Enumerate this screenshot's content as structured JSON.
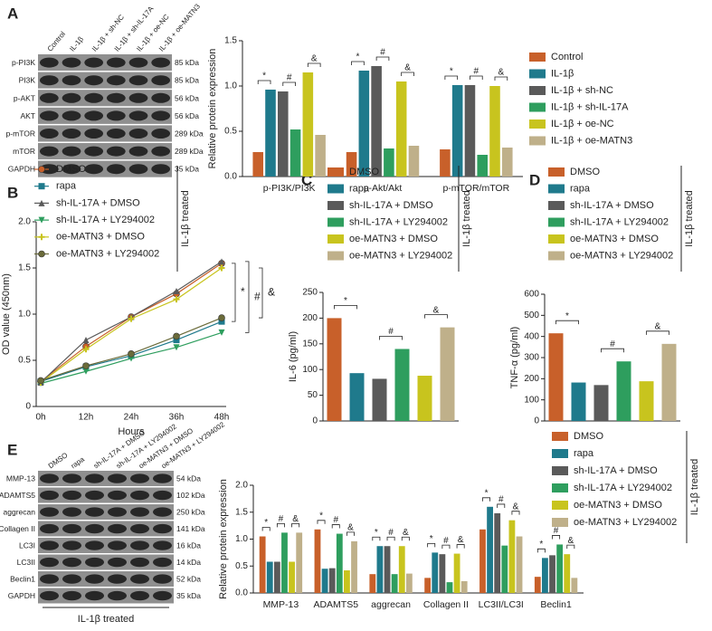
{
  "panel_labels": [
    "A",
    "B",
    "C",
    "D",
    "E"
  ],
  "blots": [
    {
      "columns": [
        "Control",
        "IL-1β",
        "IL-1β + sh-NC",
        "IL-1β + sh-IL-17A",
        "IL-1β + oe-NC",
        "IL-1β + oe-MATN3"
      ],
      "rows": [
        {
          "protein": "p-PI3K",
          "size": "85 kDa"
        },
        {
          "protein": "PI3K",
          "size": "85 kDa"
        },
        {
          "protein": "p-AKT",
          "size": "56 kDa"
        },
        {
          "protein": "AKT",
          "size": "56 kDa"
        },
        {
          "protein": "p-mTOR",
          "size": "289 kDa"
        },
        {
          "protein": "mTOR",
          "size": "289 kDa"
        },
        {
          "protein": "GAPDH",
          "size": "35 kDa"
        }
      ]
    },
    {
      "columns": [
        "DMSO",
        "rapa",
        "sh-IL-17A + DMSO",
        "sh-IL-17A + LY294002",
        "oe-MATN3 + DMSO",
        "oe-MATN3 + LY294002"
      ],
      "rows": [
        {
          "protein": "MMP-13",
          "size": "54 kDa"
        },
        {
          "protein": "ADAMTS5",
          "size": "102 kDa"
        },
        {
          "protein": "aggrecan",
          "size": "250 kDa"
        },
        {
          "protein": "Collagen II",
          "size": "141 kDa"
        },
        {
          "protein": "LC3I",
          "size": "16 kDa"
        },
        {
          "protein": "LC3II",
          "size": "14 kDa"
        },
        {
          "protein": "Beclin1",
          "size": "52 kDa"
        },
        {
          "protein": "GAPDH",
          "size": "35 kDa"
        }
      ],
      "footer": "IL-1β treated"
    }
  ],
  "chart_data": [
    {
      "type": "bar",
      "ylabel": "Relative protein expression",
      "categories": [
        "p-PI3K/PI3K",
        "p-Akt/Akt",
        "p-mTOR/mTOR"
      ],
      "series": [
        {
          "name": "Control",
          "color": "#c8602a",
          "values": [
            0.27,
            0.27,
            0.3
          ]
        },
        {
          "name": "IL-1β",
          "color": "#1f7a8c",
          "values": [
            0.96,
            1.17,
            1.01
          ]
        },
        {
          "name": "IL-1β + sh-NC",
          "color": "#5a5a5a",
          "values": [
            0.94,
            1.22,
            1.01
          ]
        },
        {
          "name": "IL-1β + sh-IL-17A",
          "color": "#2e9e5e",
          "values": [
            0.52,
            0.31,
            0.24
          ]
        },
        {
          "name": "IL-1β + oe-NC",
          "color": "#c8c41e",
          "values": [
            1.15,
            1.05,
            1.0
          ]
        },
        {
          "name": "IL-1β + oe-MATN3",
          "color": "#bfb08a",
          "values": [
            0.46,
            0.34,
            0.32
          ]
        }
      ],
      "ylim": [
        0,
        1.5
      ],
      "yticks": [
        {
          "value": 0,
          "label": "0.0"
        },
        0.5,
        {
          "value": 1,
          "label": "1.0"
        },
        1.5
      ],
      "legend": "right",
      "comparisons": [
        {
          "label": "*",
          "pair": [
            0,
            1
          ]
        },
        {
          "label": "#",
          "pair": [
            2,
            3
          ]
        },
        {
          "label": "&",
          "pair": [
            4,
            5
          ]
        }
      ]
    },
    {
      "type": "line",
      "ylabel": "OD value (450nm)",
      "xlabel": "Hours",
      "note": "IL-1β treated",
      "categories": [
        "0h",
        "12h",
        "24h",
        "36h",
        "48h"
      ],
      "series": [
        {
          "name": "DMSO",
          "color": "#c8602a",
          "marker": "circle",
          "values": [
            0.27,
            0.65,
            0.97,
            1.22,
            1.55
          ]
        },
        {
          "name": "rapa",
          "color": "#1f7a8c",
          "marker": "square",
          "values": [
            0.27,
            0.43,
            0.55,
            0.72,
            0.92
          ]
        },
        {
          "name": "sh-IL-17A + DMSO",
          "color": "#5a5a5a",
          "marker": "triangle",
          "values": [
            0.26,
            0.72,
            0.97,
            1.25,
            1.57
          ]
        },
        {
          "name": "sh-IL-17A + LY294002",
          "color": "#2e9e5e",
          "marker": "triangle-down",
          "values": [
            0.25,
            0.38,
            0.52,
            0.64,
            0.8
          ]
        },
        {
          "name": "oe-MATN3 + DMSO",
          "color": "#c8c41e",
          "marker": "cross",
          "values": [
            0.26,
            0.62,
            0.95,
            1.16,
            1.5
          ]
        },
        {
          "name": "oe-MATN3 + LY294002",
          "color": "#6b6b3a",
          "marker": "circle",
          "values": [
            0.28,
            0.44,
            0.57,
            0.76,
            0.96
          ]
        }
      ],
      "ylim": [
        0,
        2
      ],
      "yticks": [
        0,
        0.5,
        {
          "value": 1,
          "label": "1.0"
        },
        1.5,
        {
          "value": 2,
          "label": "2.0"
        }
      ],
      "legend": "top",
      "comparisons": [
        {
          "label": "*",
          "pair": [
            0,
            1
          ]
        },
        {
          "label": "#",
          "pair": [
            2,
            3
          ]
        },
        {
          "label": "&",
          "pair": [
            4,
            5
          ]
        }
      ]
    },
    {
      "type": "bar",
      "ylabel": "IL-6 (pg/ml)",
      "note": "IL-1β treated",
      "categories": [
        "DMSO",
        "rapa",
        "sh-IL-17A + DMSO",
        "sh-IL-17A + LY294002",
        "oe-MATN3 + DMSO",
        "oe-MATN3 + LY294002"
      ],
      "colors": [
        "#c8602a",
        "#1f7a8c",
        "#5a5a5a",
        "#2e9e5e",
        "#c8c41e",
        "#bfb08a"
      ],
      "values": [
        200,
        93,
        82,
        140,
        88,
        182
      ],
      "ylim": [
        0,
        250
      ],
      "yticks": [
        0,
        50,
        100,
        150,
        200,
        250
      ],
      "legend": "top",
      "comparisons": [
        {
          "label": "*",
          "pair": [
            0,
            1
          ]
        },
        {
          "label": "#",
          "pair": [
            2,
            3
          ]
        },
        {
          "label": "&",
          "pair": [
            4,
            5
          ]
        }
      ]
    },
    {
      "type": "bar",
      "ylabel": "TNF-α (pg/ml)",
      "note": "IL-1β treated",
      "categories": [
        "DMSO",
        "rapa",
        "sh-IL-17A + DMSO",
        "sh-IL-17A + LY294002",
        "oe-MATN3 + DMSO",
        "oe-MATN3 + LY294002"
      ],
      "colors": [
        "#c8602a",
        "#1f7a8c",
        "#5a5a5a",
        "#2e9e5e",
        "#c8c41e",
        "#bfb08a"
      ],
      "values": [
        415,
        182,
        170,
        282,
        188,
        365
      ],
      "ylim": [
        0,
        600
      ],
      "yticks": [
        0,
        100,
        200,
        300,
        400,
        500,
        600
      ],
      "legend": "top",
      "comparisons": [
        {
          "label": "*",
          "pair": [
            0,
            1
          ]
        },
        {
          "label": "#",
          "pair": [
            2,
            3
          ]
        },
        {
          "label": "&",
          "pair": [
            4,
            5
          ]
        }
      ]
    },
    {
      "type": "bar",
      "ylabel": "Relative protein expression",
      "note": "IL-1β treated",
      "categories": [
        "MMP-13",
        "ADAMTS5",
        "aggrecan",
        "Collagen II",
        "LC3II/LC3I",
        "Beclin1"
      ],
      "series": [
        {
          "name": "DMSO",
          "color": "#c8602a",
          "values": [
            1.05,
            1.18,
            0.35,
            0.28,
            1.18,
            0.3
          ]
        },
        {
          "name": "rapa",
          "color": "#1f7a8c",
          "values": [
            0.58,
            0.45,
            0.87,
            0.75,
            1.6,
            0.65
          ]
        },
        {
          "name": "sh-IL-17A + DMSO",
          "color": "#5a5a5a",
          "values": [
            0.58,
            0.46,
            0.87,
            0.72,
            1.48,
            0.7
          ]
        },
        {
          "name": "sh-IL-17A + LY294002",
          "color": "#2e9e5e",
          "values": [
            1.12,
            1.1,
            0.35,
            0.2,
            0.88,
            0.9
          ]
        },
        {
          "name": "oe-MATN3 + DMSO",
          "color": "#c8c41e",
          "values": [
            0.58,
            0.42,
            0.87,
            0.73,
            1.35,
            0.72
          ]
        },
        {
          "name": "oe-MATN3 + LY294002",
          "color": "#bfb08a",
          "values": [
            1.12,
            0.96,
            0.36,
            0.22,
            1.05,
            0.28
          ]
        }
      ],
      "ylim": [
        0,
        2
      ],
      "yticks": [
        {
          "value": 0,
          "label": "0.0"
        },
        0.5,
        {
          "value": 1,
          "label": "1.0"
        },
        1.5,
        {
          "value": 2,
          "label": "2.0"
        }
      ],
      "legend": "top-right",
      "comparisons": [
        {
          "label": "*",
          "pair": [
            0,
            1
          ]
        },
        {
          "label": "#",
          "pair": [
            2,
            3
          ]
        },
        {
          "label": "&",
          "pair": [
            4,
            5
          ]
        }
      ]
    }
  ]
}
